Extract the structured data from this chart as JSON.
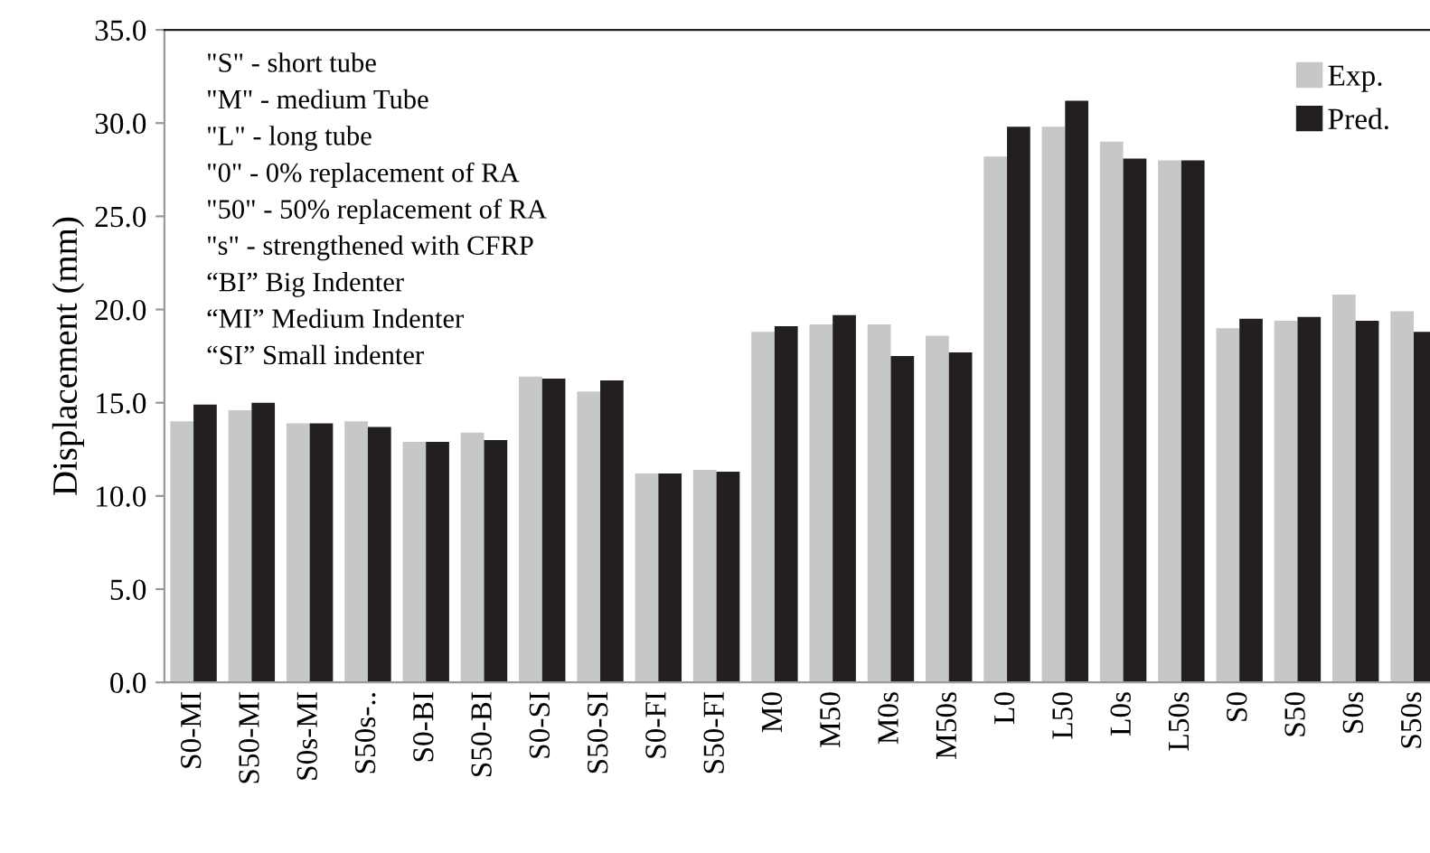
{
  "chart_data": {
    "type": "bar",
    "ylabel": "Displacement (mm)",
    "categories": [
      "S0-MI",
      "S50-MI",
      "S0s-MI",
      "S50s-..",
      "S0-BI",
      "S50-BI",
      "S0-SI",
      "S50-SI",
      "S0-FI",
      "S50-FI",
      "M0",
      "M50",
      "M0s",
      "M50s",
      "L0",
      "L50",
      "L0s",
      "L50s",
      "S0",
      "S50",
      "S0s",
      "S50s"
    ],
    "series": [
      {
        "name": "Exp.",
        "color": "#c6c7c9",
        "values": [
          14.0,
          14.6,
          13.9,
          14.0,
          12.9,
          13.4,
          16.4,
          15.6,
          11.2,
          11.4,
          18.8,
          19.2,
          19.2,
          18.6,
          28.2,
          29.8,
          29.0,
          28.0,
          19.0,
          19.4,
          20.8,
          19.9
        ]
      },
      {
        "name": "Pred.",
        "color": "#231f20",
        "values": [
          14.9,
          15.0,
          13.9,
          13.7,
          12.9,
          13.0,
          16.3,
          16.2,
          11.2,
          11.3,
          19.1,
          19.7,
          17.5,
          17.7,
          29.8,
          31.2,
          28.1,
          28.0,
          19.5,
          19.6,
          19.4,
          18.8
        ]
      }
    ],
    "ylim": [
      0,
      35
    ],
    "yticks": [
      {
        "value": 0,
        "label": "0.0"
      },
      {
        "value": 5,
        "label": "5.0"
      },
      {
        "value": 10,
        "label": "10.0"
      },
      {
        "value": 15,
        "label": "15.0"
      },
      {
        "value": 20,
        "label": "20.0"
      },
      {
        "value": 25,
        "label": "25.0"
      },
      {
        "value": 30,
        "label": "30.0"
      },
      {
        "value": 35,
        "label": "35.0"
      }
    ],
    "legend": "top right",
    "grid": false,
    "annotations": [
      "\"S\" - short tube",
      "\"M\" - medium Tube",
      "\"L\" - long tube",
      "\"0\" - 0% replacement of RA",
      "\"50\" - 50% replacement of RA",
      "\"s\" - strengthened with CFRP",
      "“BI” Big Indenter",
      "“MI” Medium Indenter",
      "“SI” Small indenter"
    ]
  }
}
